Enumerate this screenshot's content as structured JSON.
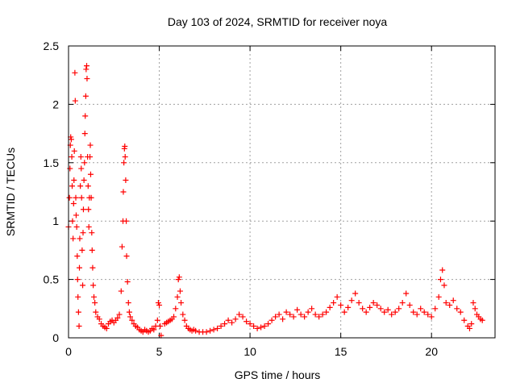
{
  "chart_data": {
    "type": "scatter",
    "title": "Day 103 of 2024, SRMTID for receiver noya",
    "xlabel": "GPS time / hours",
    "ylabel": "SRMTID / TECUs",
    "xlim": [
      0,
      23.5
    ],
    "ylim": [
      0,
      2.5
    ],
    "xticks": [
      0,
      5,
      10,
      15,
      20
    ],
    "yticks": [
      0,
      0.5,
      1,
      1.5,
      2,
      2.5
    ],
    "xtick_labels": [
      "0",
      "5",
      "10",
      "15",
      "20"
    ],
    "ytick_labels": [
      "0",
      "0.5",
      "1",
      "1.5",
      "2",
      "2.5"
    ],
    "grid": true,
    "marker": "plus",
    "color": "#ff0000",
    "series": [
      {
        "name": "SRMTID",
        "points": [
          [
            0.0,
            0.95
          ],
          [
            0.05,
            1.2
          ],
          [
            0.08,
            1.45
          ],
          [
            0.1,
            1.65
          ],
          [
            0.12,
            1.72
          ],
          [
            0.15,
            1.7
          ],
          [
            0.18,
            1.55
          ],
          [
            0.2,
            1.3
          ],
          [
            0.22,
            1.0
          ],
          [
            0.25,
            0.85
          ],
          [
            0.28,
            1.15
          ],
          [
            0.3,
            1.35
          ],
          [
            0.32,
            1.6
          ],
          [
            0.35,
            2.27
          ],
          [
            0.37,
            2.03
          ],
          [
            0.4,
            1.2
          ],
          [
            0.42,
            1.05
          ],
          [
            0.45,
            0.95
          ],
          [
            0.48,
            0.7
          ],
          [
            0.5,
            0.5
          ],
          [
            0.52,
            0.35
          ],
          [
            0.55,
            0.22
          ],
          [
            0.58,
            0.1
          ],
          [
            0.6,
            0.6
          ],
          [
            0.62,
            0.85
          ],
          [
            0.65,
            1.3
          ],
          [
            0.68,
            1.55
          ],
          [
            0.7,
            1.45
          ],
          [
            0.72,
            1.2
          ],
          [
            0.75,
            0.75
          ],
          [
            0.78,
            0.45
          ],
          [
            0.8,
            0.9
          ],
          [
            0.82,
            1.1
          ],
          [
            0.85,
            1.35
          ],
          [
            0.88,
            1.5
          ],
          [
            0.9,
            1.75
          ],
          [
            0.92,
            1.9
          ],
          [
            0.95,
            2.07
          ],
          [
            0.97,
            2.3
          ],
          [
            1.0,
            2.33
          ],
          [
            1.02,
            2.22
          ],
          [
            1.05,
            1.55
          ],
          [
            1.08,
            1.3
          ],
          [
            1.1,
            1.1
          ],
          [
            1.12,
            0.95
          ],
          [
            1.15,
            1.2
          ],
          [
            1.18,
            1.55
          ],
          [
            1.2,
            1.65
          ],
          [
            1.22,
            1.4
          ],
          [
            1.25,
            1.2
          ],
          [
            1.28,
            0.9
          ],
          [
            1.3,
            0.75
          ],
          [
            1.33,
            0.6
          ],
          [
            1.36,
            0.45
          ],
          [
            1.4,
            0.35
          ],
          [
            1.45,
            0.3
          ],
          [
            1.5,
            0.22
          ],
          [
            1.6,
            0.18
          ],
          [
            1.7,
            0.16
          ],
          [
            1.8,
            0.12
          ],
          [
            1.9,
            0.1
          ],
          [
            2.0,
            0.09
          ],
          [
            2.1,
            0.08
          ],
          [
            2.2,
            0.12
          ],
          [
            2.3,
            0.14
          ],
          [
            2.4,
            0.15
          ],
          [
            2.5,
            0.13
          ],
          [
            2.6,
            0.15
          ],
          [
            2.7,
            0.17
          ],
          [
            2.8,
            0.2
          ],
          [
            2.9,
            0.4
          ],
          [
            2.95,
            0.78
          ],
          [
            3.0,
            1.0
          ],
          [
            3.02,
            1.25
          ],
          [
            3.05,
            1.5
          ],
          [
            3.08,
            1.62
          ],
          [
            3.1,
            1.64
          ],
          [
            3.12,
            1.55
          ],
          [
            3.15,
            1.35
          ],
          [
            3.18,
            1.0
          ],
          [
            3.2,
            0.7
          ],
          [
            3.25,
            0.48
          ],
          [
            3.3,
            0.3
          ],
          [
            3.35,
            0.22
          ],
          [
            3.4,
            0.18
          ],
          [
            3.5,
            0.15
          ],
          [
            3.6,
            0.12
          ],
          [
            3.7,
            0.1
          ],
          [
            3.8,
            0.09
          ],
          [
            3.9,
            0.07
          ],
          [
            4.0,
            0.06
          ],
          [
            4.1,
            0.05
          ],
          [
            4.2,
            0.07
          ],
          [
            4.3,
            0.06
          ],
          [
            4.4,
            0.05
          ],
          [
            4.5,
            0.06
          ],
          [
            4.6,
            0.08
          ],
          [
            4.7,
            0.07
          ],
          [
            4.8,
            0.1
          ],
          [
            4.9,
            0.15
          ],
          [
            4.95,
            0.3
          ],
          [
            5.0,
            0.28
          ],
          [
            5.05,
            0.1
          ],
          [
            5.1,
            0.02
          ],
          [
            5.3,
            0.12
          ],
          [
            5.4,
            0.13
          ],
          [
            5.5,
            0.14
          ],
          [
            5.6,
            0.15
          ],
          [
            5.7,
            0.16
          ],
          [
            5.8,
            0.18
          ],
          [
            5.9,
            0.25
          ],
          [
            6.0,
            0.35
          ],
          [
            6.05,
            0.5
          ],
          [
            6.1,
            0.52
          ],
          [
            6.15,
            0.4
          ],
          [
            6.2,
            0.3
          ],
          [
            6.3,
            0.2
          ],
          [
            6.4,
            0.15
          ],
          [
            6.5,
            0.1
          ],
          [
            6.6,
            0.08
          ],
          [
            6.7,
            0.07
          ],
          [
            6.8,
            0.06
          ],
          [
            6.9,
            0.07
          ],
          [
            7.0,
            0.06
          ],
          [
            7.2,
            0.05
          ],
          [
            7.4,
            0.05
          ],
          [
            7.6,
            0.05
          ],
          [
            7.8,
            0.06
          ],
          [
            8.0,
            0.07
          ],
          [
            8.2,
            0.08
          ],
          [
            8.4,
            0.1
          ],
          [
            8.6,
            0.12
          ],
          [
            8.8,
            0.15
          ],
          [
            9.0,
            0.13
          ],
          [
            9.2,
            0.16
          ],
          [
            9.4,
            0.2
          ],
          [
            9.6,
            0.18
          ],
          [
            9.8,
            0.14
          ],
          [
            10.0,
            0.12
          ],
          [
            10.2,
            0.1
          ],
          [
            10.4,
            0.08
          ],
          [
            10.6,
            0.09
          ],
          [
            10.8,
            0.1
          ],
          [
            11.0,
            0.12
          ],
          [
            11.2,
            0.15
          ],
          [
            11.4,
            0.18
          ],
          [
            11.6,
            0.2
          ],
          [
            11.8,
            0.16
          ],
          [
            12.0,
            0.22
          ],
          [
            12.2,
            0.2
          ],
          [
            12.4,
            0.18
          ],
          [
            12.6,
            0.24
          ],
          [
            12.8,
            0.2
          ],
          [
            13.0,
            0.18
          ],
          [
            13.2,
            0.22
          ],
          [
            13.4,
            0.25
          ],
          [
            13.6,
            0.2
          ],
          [
            13.8,
            0.18
          ],
          [
            14.0,
            0.2
          ],
          [
            14.2,
            0.22
          ],
          [
            14.4,
            0.26
          ],
          [
            14.6,
            0.3
          ],
          [
            14.8,
            0.35
          ],
          [
            15.0,
            0.28
          ],
          [
            15.2,
            0.22
          ],
          [
            15.4,
            0.26
          ],
          [
            15.6,
            0.32
          ],
          [
            15.8,
            0.38
          ],
          [
            16.0,
            0.3
          ],
          [
            16.2,
            0.25
          ],
          [
            16.4,
            0.22
          ],
          [
            16.6,
            0.26
          ],
          [
            16.8,
            0.3
          ],
          [
            17.0,
            0.28
          ],
          [
            17.2,
            0.25
          ],
          [
            17.4,
            0.22
          ],
          [
            17.6,
            0.24
          ],
          [
            17.8,
            0.2
          ],
          [
            18.0,
            0.22
          ],
          [
            18.2,
            0.25
          ],
          [
            18.4,
            0.3
          ],
          [
            18.6,
            0.38
          ],
          [
            18.8,
            0.28
          ],
          [
            19.0,
            0.22
          ],
          [
            19.2,
            0.2
          ],
          [
            19.4,
            0.25
          ],
          [
            19.6,
            0.22
          ],
          [
            19.8,
            0.2
          ],
          [
            20.0,
            0.18
          ],
          [
            20.2,
            0.25
          ],
          [
            20.4,
            0.35
          ],
          [
            20.5,
            0.5
          ],
          [
            20.6,
            0.58
          ],
          [
            20.7,
            0.45
          ],
          [
            20.8,
            0.3
          ],
          [
            21.0,
            0.28
          ],
          [
            21.2,
            0.32
          ],
          [
            21.4,
            0.25
          ],
          [
            21.6,
            0.22
          ],
          [
            21.8,
            0.15
          ],
          [
            22.0,
            0.1
          ],
          [
            22.1,
            0.08
          ],
          [
            22.2,
            0.12
          ],
          [
            22.3,
            0.3
          ],
          [
            22.4,
            0.25
          ],
          [
            22.5,
            0.2
          ],
          [
            22.6,
            0.18
          ],
          [
            22.7,
            0.16
          ],
          [
            22.8,
            0.15
          ]
        ]
      }
    ]
  }
}
